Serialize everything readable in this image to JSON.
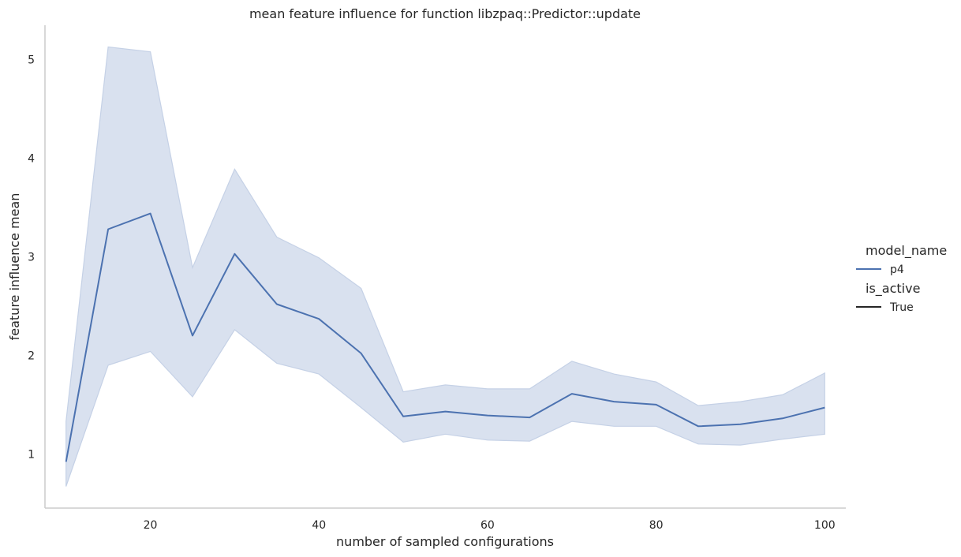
{
  "chart_data": {
    "type": "line",
    "title": "mean feature influence for function libzpaq::Predictor::update",
    "xlabel": "number of sampled configurations",
    "ylabel": "feature influence mean",
    "xlim": [
      7.5,
      102.5
    ],
    "ylim": [
      0.45,
      5.35
    ],
    "xticks": [
      20,
      40,
      60,
      80,
      100
    ],
    "yticks": [
      1,
      2,
      3,
      4,
      5
    ],
    "grid": false,
    "legend_placement": "right",
    "series": [
      {
        "name": "p4",
        "color": "#4c72b0",
        "x": [
          10,
          15,
          20,
          25,
          30,
          35,
          40,
          45,
          50,
          55,
          60,
          65,
          70,
          75,
          80,
          85,
          90,
          95,
          100
        ],
        "y": [
          0.92,
          3.28,
          3.44,
          2.2,
          3.03,
          2.52,
          2.37,
          2.02,
          1.38,
          1.43,
          1.39,
          1.37,
          1.61,
          1.53,
          1.5,
          1.28,
          1.3,
          1.36,
          1.47
        ],
        "ci_low": [
          0.67,
          1.9,
          2.04,
          1.58,
          2.26,
          1.92,
          1.81,
          1.47,
          1.12,
          1.2,
          1.14,
          1.13,
          1.33,
          1.28,
          1.28,
          1.1,
          1.09,
          1.15,
          1.2
        ],
        "ci_high": [
          1.33,
          5.13,
          5.08,
          2.89,
          3.89,
          3.2,
          2.99,
          2.68,
          1.63,
          1.7,
          1.66,
          1.66,
          1.94,
          1.81,
          1.73,
          1.49,
          1.53,
          1.6,
          1.82
        ],
        "ci_color": "#c5d1e6"
      }
    ],
    "legend": {
      "hue_title": "model_name",
      "hue_entries": [
        {
          "label": "p4",
          "color": "#4c72b0"
        }
      ],
      "style_title": "is_active",
      "style_entries": [
        {
          "label": "True",
          "color": "#262626"
        }
      ]
    }
  }
}
